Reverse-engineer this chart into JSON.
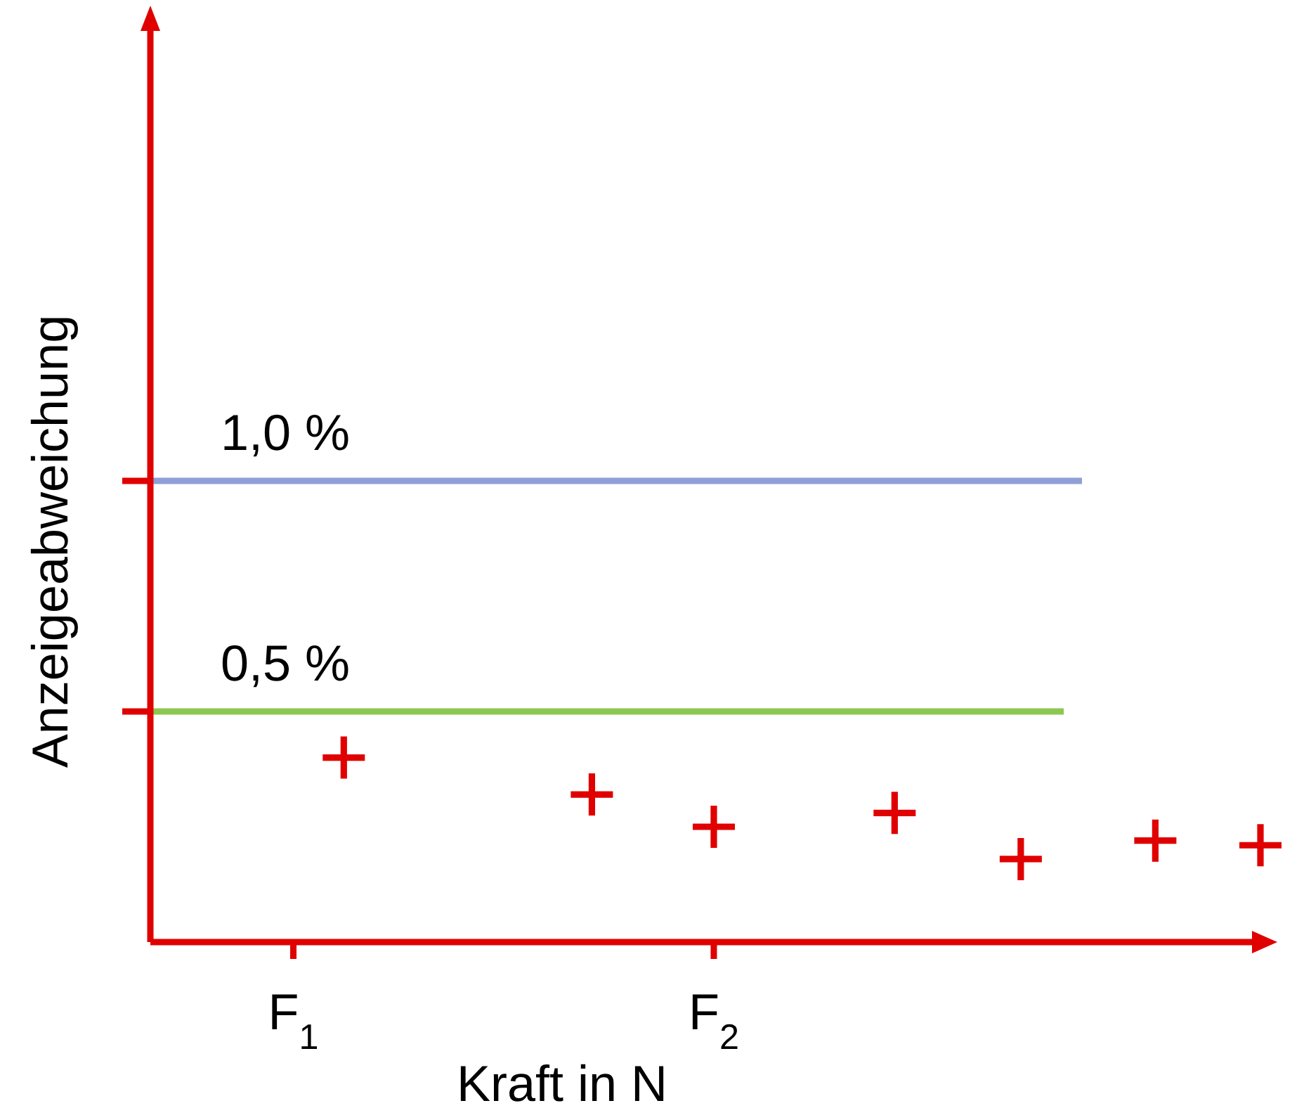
{
  "chart_data": {
    "type": "scatter",
    "xlabel": "Kraft in N",
    "ylabel": "Anzeigeabweichung",
    "x": [
      1.12,
      1.71,
      2.0,
      2.43,
      2.73,
      3.05,
      3.3
    ],
    "series": [
      {
        "color": "#e00000",
        "values": [
          0.4,
          0.32,
          0.25,
          0.28,
          0.18,
          0.22,
          0.21
        ]
      }
    ],
    "xlim": [
      0.66,
      3.3
    ],
    "ylim": [
      0,
      2.0
    ],
    "xticks": [
      {
        "value": 1,
        "label": "F$_{1}$"
      },
      {
        "value": 2,
        "label": "F$_{2}$"
      }
    ],
    "yticks": [
      {
        "value": 0.5,
        "label": null
      },
      {
        "value": 1.0,
        "label": null
      }
    ],
    "ref_lines": [
      {
        "axis": "y",
        "value": 1.0,
        "label": "1,0 %",
        "color": "#8fa0d8"
      },
      {
        "axis": "y",
        "value": 0.5,
        "label": "0,5 %",
        "color": "#8cc850"
      }
    ],
    "marker": "cross",
    "grid": false
  }
}
